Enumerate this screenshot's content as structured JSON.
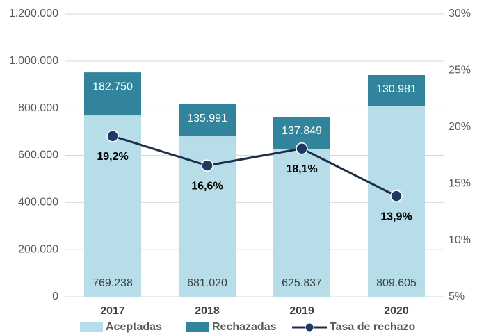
{
  "chart_data": {
    "type": "bar",
    "categories": [
      "2017",
      "2018",
      "2019",
      "2020"
    ],
    "stacked": true,
    "series": [
      {
        "name": "Aceptadas",
        "color": "#b7dde8",
        "values": [
          769238,
          681020,
          625837,
          809605
        ],
        "value_labels": [
          "769.238",
          "681.020",
          "625.837",
          "809.605"
        ]
      },
      {
        "name": "Rechazadas",
        "color": "#31849b",
        "values": [
          182750,
          135991,
          137849,
          130981
        ],
        "value_labels": [
          "182.750",
          "135.991",
          "137.849",
          "130.981"
        ]
      },
      {
        "name": "Tasa de rechazo",
        "type": "line",
        "axis": "y2",
        "color": "#1f2d4a",
        "values": [
          19.2,
          16.6,
          18.1,
          13.9
        ],
        "value_labels": [
          "19,2%",
          "16,6%",
          "18,1%",
          "13,9%"
        ]
      }
    ],
    "ylim": [
      0,
      1200000
    ],
    "yticks": [
      0,
      {
        "value": 200000,
        "label": "200.000"
      },
      {
        "value": 400000,
        "label": "400.000"
      },
      {
        "value": 600000,
        "label": "600.000"
      },
      {
        "value": 800000,
        "label": "800.000"
      },
      {
        "value": 1000000,
        "label": "1.000.000"
      },
      {
        "value": 1200000,
        "label": "1.200.000"
      }
    ],
    "y2lim": [
      5,
      30
    ],
    "y2ticks": [
      {
        "value": 5,
        "label": "5%"
      },
      {
        "value": 10,
        "label": "10%"
      },
      {
        "value": 15,
        "label": "15%"
      },
      {
        "value": 20,
        "label": "20%"
      },
      {
        "value": 25,
        "label": "25%"
      },
      {
        "value": 30,
        "label": "30%"
      }
    ],
    "grid": true,
    "legend": "bottom"
  }
}
